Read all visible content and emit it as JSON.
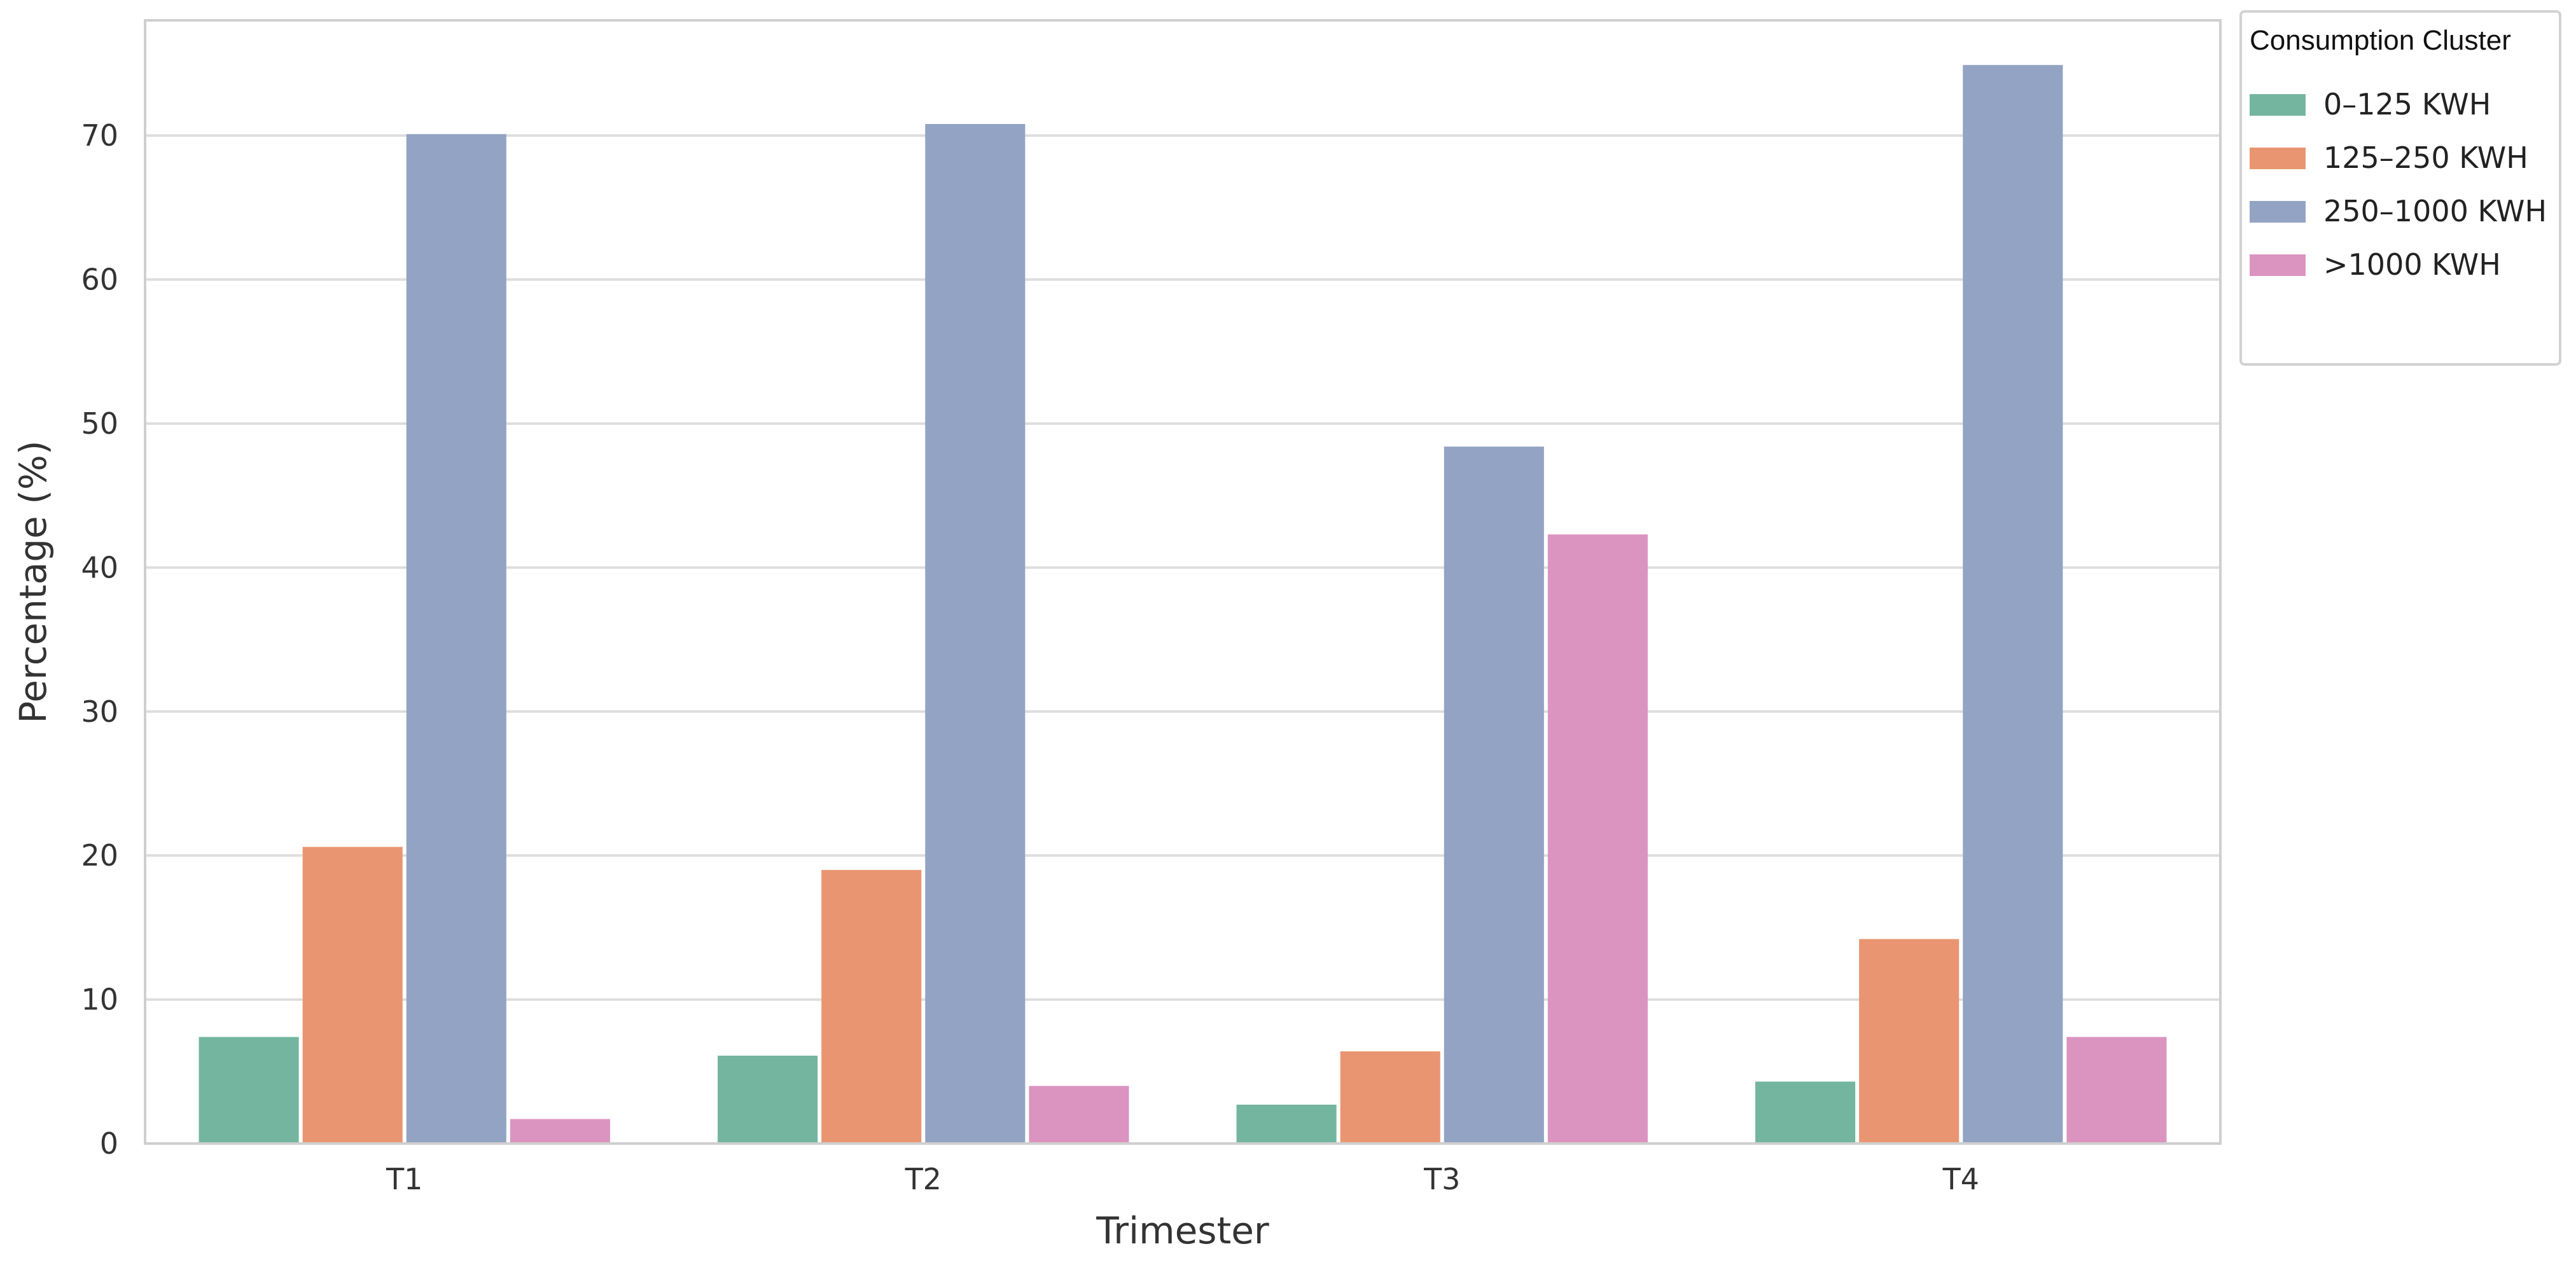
{
  "chart_data": {
    "type": "bar",
    "title": "",
    "xlabel": "Trimester",
    "ylabel": "Percentage (%)",
    "categories": [
      "T1",
      "T2",
      "T3",
      "T4"
    ],
    "ylim": [
      0,
      78
    ],
    "yticks": [
      0,
      10,
      20,
      30,
      40,
      50,
      60,
      70
    ],
    "grid": true,
    "legend": {
      "title": "Consumption Cluster",
      "placement": "outside-top-right"
    },
    "series": [
      {
        "name": "0–125 KWH",
        "color": "#74b59f",
        "values": [
          7.4,
          6.1,
          2.7,
          4.3
        ]
      },
      {
        "name": "125–250 KWH",
        "color": "#e99572",
        "values": [
          20.6,
          19.0,
          6.4,
          14.2
        ]
      },
      {
        "name": "250–1000 KWH",
        "color": "#93a3c3",
        "values": [
          70.1,
          70.8,
          48.4,
          74.9
        ]
      },
      {
        "name": ">1000 KWH",
        "color": "#db94c0",
        "values": [
          1.7,
          4.0,
          42.3,
          7.4
        ]
      }
    ]
  }
}
